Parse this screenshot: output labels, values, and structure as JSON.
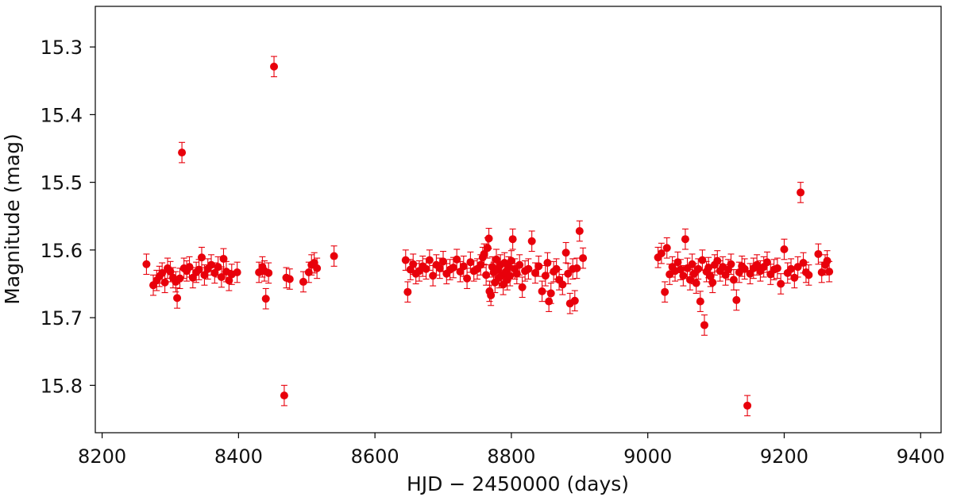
{
  "chart_data": {
    "type": "scatter",
    "xlabel": "HJD − 2450000 (days)",
    "ylabel": "Magnitude (mag)",
    "xlim": [
      8190,
      9430
    ],
    "ylim": [
      15.24,
      15.87
    ],
    "y_inverted": true,
    "grid": false,
    "legend": "none",
    "marker_color": "#e8000b",
    "xticks": [
      {
        "value": 8200,
        "label": "8200"
      },
      {
        "value": 8400,
        "label": "8400"
      },
      {
        "value": 8600,
        "label": "8600"
      },
      {
        "value": 8800,
        "label": "8800"
      },
      {
        "value": 9000,
        "label": "9000"
      },
      {
        "value": 9200,
        "label": "9200"
      },
      {
        "value": 9400,
        "label": "9400"
      }
    ],
    "yticks": [
      {
        "value": 15.3,
        "label": "15.3"
      },
      {
        "value": 15.4,
        "label": "15.4"
      },
      {
        "value": 15.5,
        "label": "15.5"
      },
      {
        "value": 15.6,
        "label": "15.6"
      },
      {
        "value": 15.7,
        "label": "15.7"
      },
      {
        "value": 15.8,
        "label": "15.8"
      }
    ],
    "points": [
      [
        8265,
        15.621,
        0.015
      ],
      [
        8275,
        15.652,
        0.015
      ],
      [
        8280,
        15.645,
        0.015
      ],
      [
        8284,
        15.639,
        0.015
      ],
      [
        8288,
        15.634,
        0.015
      ],
      [
        8292,
        15.648,
        0.015
      ],
      [
        8296,
        15.627,
        0.015
      ],
      [
        8300,
        15.632,
        0.015
      ],
      [
        8304,
        15.641,
        0.015
      ],
      [
        8308,
        15.647,
        0.015
      ],
      [
        8310,
        15.671,
        0.015
      ],
      [
        8314,
        15.642,
        0.015
      ],
      [
        8317,
        15.456,
        0.015
      ],
      [
        8320,
        15.627,
        0.015
      ],
      [
        8324,
        15.631,
        0.015
      ],
      [
        8328,
        15.625,
        0.015
      ],
      [
        8333,
        15.641,
        0.015
      ],
      [
        8338,
        15.633,
        0.015
      ],
      [
        8342,
        15.629,
        0.015
      ],
      [
        8346,
        15.611,
        0.015
      ],
      [
        8350,
        15.637,
        0.015
      ],
      [
        8355,
        15.628,
        0.015
      ],
      [
        8360,
        15.622,
        0.015
      ],
      [
        8365,
        15.634,
        0.015
      ],
      [
        8370,
        15.625,
        0.015
      ],
      [
        8375,
        15.64,
        0.015
      ],
      [
        8378,
        15.613,
        0.015
      ],
      [
        8382,
        15.632,
        0.015
      ],
      [
        8386,
        15.645,
        0.015
      ],
      [
        8390,
        15.636,
        0.015
      ],
      [
        8398,
        15.633,
        0.015
      ],
      [
        8430,
        15.633,
        0.015
      ],
      [
        8435,
        15.625,
        0.015
      ],
      [
        8438,
        15.631,
        0.015
      ],
      [
        8440,
        15.672,
        0.015
      ],
      [
        8444,
        15.634,
        0.015
      ],
      [
        8452,
        15.329,
        0.015
      ],
      [
        8467,
        15.815,
        0.015
      ],
      [
        8470,
        15.641,
        0.015
      ],
      [
        8475,
        15.643,
        0.015
      ],
      [
        8495,
        15.647,
        0.015
      ],
      [
        8503,
        15.633,
        0.015
      ],
      [
        8507,
        15.622,
        0.015
      ],
      [
        8511,
        15.619,
        0.015
      ],
      [
        8515,
        15.627,
        0.015
      ],
      [
        8540,
        15.609,
        0.015
      ],
      [
        8645,
        15.615,
        0.015
      ],
      [
        8648,
        15.662,
        0.015
      ],
      [
        8652,
        15.629,
        0.015
      ],
      [
        8656,
        15.621,
        0.015
      ],
      [
        8660,
        15.635,
        0.015
      ],
      [
        8665,
        15.631,
        0.015
      ],
      [
        8670,
        15.624,
        0.015
      ],
      [
        8675,
        15.628,
        0.015
      ],
      [
        8680,
        15.615,
        0.015
      ],
      [
        8685,
        15.638,
        0.015
      ],
      [
        8690,
        15.622,
        0.015
      ],
      [
        8695,
        15.627,
        0.015
      ],
      [
        8700,
        15.617,
        0.015
      ],
      [
        8705,
        15.635,
        0.015
      ],
      [
        8710,
        15.629,
        0.015
      ],
      [
        8715,
        15.626,
        0.015
      ],
      [
        8720,
        15.614,
        0.015
      ],
      [
        8725,
        15.632,
        0.015
      ],
      [
        8730,
        15.624,
        0.015
      ],
      [
        8735,
        15.642,
        0.015
      ],
      [
        8740,
        15.618,
        0.015
      ],
      [
        8745,
        15.631,
        0.015
      ],
      [
        8750,
        15.628,
        0.015
      ],
      [
        8755,
        15.622,
        0.015
      ],
      [
        8758,
        15.611,
        0.015
      ],
      [
        8760,
        15.606,
        0.015
      ],
      [
        8763,
        15.637,
        0.015
      ],
      [
        8765,
        15.597,
        0.015
      ],
      [
        8767,
        15.583,
        0.015
      ],
      [
        8768,
        15.661,
        0.015
      ],
      [
        8770,
        15.667,
        0.015
      ],
      [
        8772,
        15.625,
        0.015
      ],
      [
        8774,
        15.633,
        0.015
      ],
      [
        8776,
        15.648,
        0.015
      ],
      [
        8778,
        15.614,
        0.015
      ],
      [
        8780,
        15.629,
        0.015
      ],
      [
        8782,
        15.641,
        0.015
      ],
      [
        8784,
        15.622,
        0.015
      ],
      [
        8786,
        15.637,
        0.015
      ],
      [
        8788,
        15.651,
        0.015
      ],
      [
        8790,
        15.619,
        0.015
      ],
      [
        8792,
        15.632,
        0.015
      ],
      [
        8794,
        15.644,
        0.015
      ],
      [
        8796,
        15.625,
        0.015
      ],
      [
        8798,
        15.638,
        0.015
      ],
      [
        8800,
        15.616,
        0.015
      ],
      [
        8802,
        15.584,
        0.015
      ],
      [
        8805,
        15.628,
        0.015
      ],
      [
        8808,
        15.635,
        0.015
      ],
      [
        8812,
        15.622,
        0.015
      ],
      [
        8816,
        15.655,
        0.015
      ],
      [
        8820,
        15.631,
        0.015
      ],
      [
        8825,
        15.628,
        0.015
      ],
      [
        8830,
        15.587,
        0.015
      ],
      [
        8835,
        15.634,
        0.015
      ],
      [
        8840,
        15.624,
        0.015
      ],
      [
        8845,
        15.661,
        0.015
      ],
      [
        8850,
        15.638,
        0.015
      ],
      [
        8853,
        15.619,
        0.015
      ],
      [
        8855,
        15.676,
        0.015
      ],
      [
        8858,
        15.664,
        0.015
      ],
      [
        8862,
        15.632,
        0.015
      ],
      [
        8866,
        15.628,
        0.015
      ],
      [
        8870,
        15.644,
        0.015
      ],
      [
        8875,
        15.651,
        0.015
      ],
      [
        8880,
        15.604,
        0.015
      ],
      [
        8883,
        15.635,
        0.015
      ],
      [
        8886,
        15.679,
        0.015
      ],
      [
        8890,
        15.628,
        0.015
      ],
      [
        8893,
        15.675,
        0.015
      ],
      [
        8896,
        15.627,
        0.015
      ],
      [
        8900,
        15.572,
        0.015
      ],
      [
        8905,
        15.612,
        0.015
      ],
      [
        9015,
        15.611,
        0.015
      ],
      [
        9020,
        15.605,
        0.015
      ],
      [
        9025,
        15.662,
        0.015
      ],
      [
        9028,
        15.597,
        0.015
      ],
      [
        9032,
        15.636,
        0.015
      ],
      [
        9036,
        15.625,
        0.015
      ],
      [
        9040,
        15.631,
        0.015
      ],
      [
        9044,
        15.618,
        0.015
      ],
      [
        9048,
        15.629,
        0.015
      ],
      [
        9052,
        15.638,
        0.015
      ],
      [
        9055,
        15.584,
        0.015
      ],
      [
        9058,
        15.627,
        0.015
      ],
      [
        9062,
        15.644,
        0.015
      ],
      [
        9065,
        15.621,
        0.015
      ],
      [
        9068,
        15.635,
        0.015
      ],
      [
        9071,
        15.649,
        0.015
      ],
      [
        9074,
        15.628,
        0.015
      ],
      [
        9077,
        15.676,
        0.015
      ],
      [
        9080,
        15.615,
        0.015
      ],
      [
        9083,
        15.711,
        0.015
      ],
      [
        9086,
        15.632,
        0.015
      ],
      [
        9089,
        15.626,
        0.015
      ],
      [
        9092,
        15.639,
        0.015
      ],
      [
        9095,
        15.648,
        0.015
      ],
      [
        9098,
        15.622,
        0.015
      ],
      [
        9102,
        15.616,
        0.015
      ],
      [
        9106,
        15.631,
        0.015
      ],
      [
        9110,
        15.625,
        0.015
      ],
      [
        9114,
        15.637,
        0.015
      ],
      [
        9118,
        15.629,
        0.015
      ],
      [
        9122,
        15.621,
        0.015
      ],
      [
        9126,
        15.644,
        0.015
      ],
      [
        9130,
        15.674,
        0.015
      ],
      [
        9134,
        15.633,
        0.015
      ],
      [
        9138,
        15.624,
        0.015
      ],
      [
        9142,
        15.628,
        0.015
      ],
      [
        9146,
        15.83,
        0.015
      ],
      [
        9150,
        15.635,
        0.015
      ],
      [
        9155,
        15.627,
        0.015
      ],
      [
        9160,
        15.622,
        0.015
      ],
      [
        9165,
        15.631,
        0.015
      ],
      [
        9170,
        15.625,
        0.015
      ],
      [
        9175,
        15.618,
        0.015
      ],
      [
        9180,
        15.636,
        0.015
      ],
      [
        9185,
        15.629,
        0.015
      ],
      [
        9190,
        15.627,
        0.015
      ],
      [
        9195,
        15.65,
        0.015
      ],
      [
        9200,
        15.599,
        0.015
      ],
      [
        9205,
        15.634,
        0.015
      ],
      [
        9210,
        15.628,
        0.015
      ],
      [
        9215,
        15.641,
        0.015
      ],
      [
        9220,
        15.625,
        0.015
      ],
      [
        9224,
        15.515,
        0.015
      ],
      [
        9228,
        15.619,
        0.015
      ],
      [
        9232,
        15.633,
        0.015
      ],
      [
        9236,
        15.637,
        0.015
      ],
      [
        9250,
        15.606,
        0.015
      ],
      [
        9255,
        15.633,
        0.015
      ],
      [
        9260,
        15.622,
        0.015
      ],
      [
        9263,
        15.616,
        0.015
      ],
      [
        9266,
        15.632,
        0.015
      ]
    ]
  }
}
